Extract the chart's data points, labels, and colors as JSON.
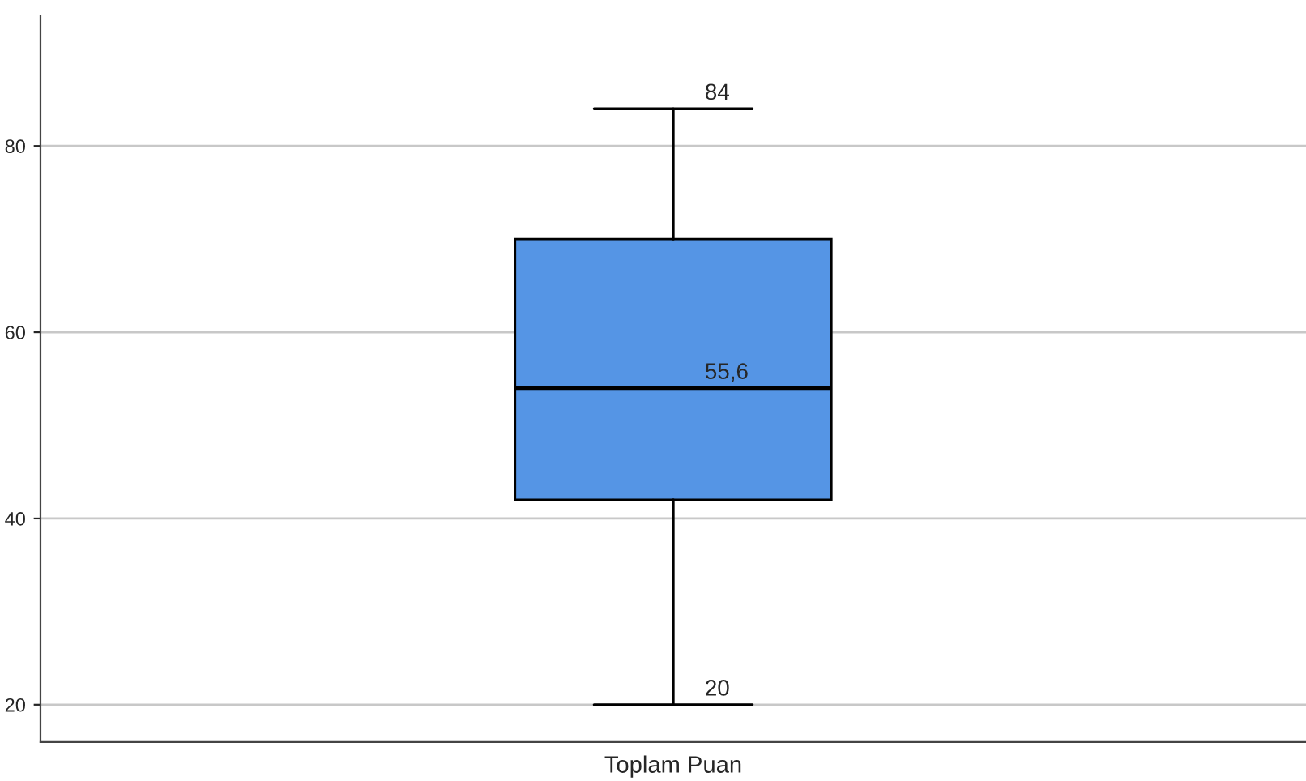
{
  "chart_data": {
    "type": "box",
    "categories": [
      "Toplam Puan"
    ],
    "boxes": [
      {
        "low": 20,
        "q1": 42,
        "median": 54,
        "q3": 70,
        "high": 84
      }
    ],
    "color": "#5595e5",
    "ylim": [
      16,
      94
    ],
    "yticks": [
      20,
      40,
      60,
      80
    ],
    "grid": "y",
    "annotations": [
      {
        "text": "84",
        "x": "Toplam Puan",
        "y": 84
      },
      {
        "text": "55,6",
        "x": "Toplam Puan",
        "y": 54
      },
      {
        "text": "20",
        "x": "Toplam Puan",
        "y": 20
      }
    ]
  }
}
